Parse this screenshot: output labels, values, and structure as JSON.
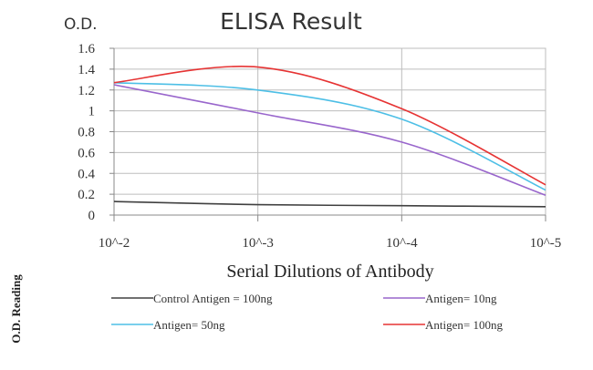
{
  "chart_data": {
    "type": "line",
    "title": "ELISA Result",
    "y_unit_label": "O.D.",
    "xlabel": "Serial Dilutions of Antibody",
    "ylabel": "O.D. Reading",
    "x": [
      "10^-2",
      "10^-3",
      "10^-4",
      "10^-5"
    ],
    "x_tick_labels": [
      "10^-2",
      "10^-3",
      "10^-4",
      "10^-5"
    ],
    "y_tick_labels": [
      "1.6",
      "1.4",
      "1.2",
      "1",
      "0.8",
      "0.6",
      "0.4",
      "0.2",
      "0"
    ],
    "ylim": [
      0,
      1.6
    ],
    "y_major_step": 0.2,
    "grid": true,
    "legend_position": "bottom",
    "series": [
      {
        "name": "Control Antigen = 100ng",
        "color": "#404040",
        "values": [
          0.13,
          0.1,
          0.09,
          0.08
        ]
      },
      {
        "name": "Antigen= 10ng",
        "color": "#9966cc",
        "values": [
          1.25,
          0.98,
          0.7,
          0.19
        ]
      },
      {
        "name": "Antigen= 50ng",
        "color": "#4dbfe6",
        "values": [
          1.27,
          1.2,
          0.92,
          0.24
        ]
      },
      {
        "name": "Antigen= 100ng",
        "color": "#e63333",
        "values": [
          1.27,
          1.42,
          1.02,
          0.29
        ]
      }
    ]
  }
}
